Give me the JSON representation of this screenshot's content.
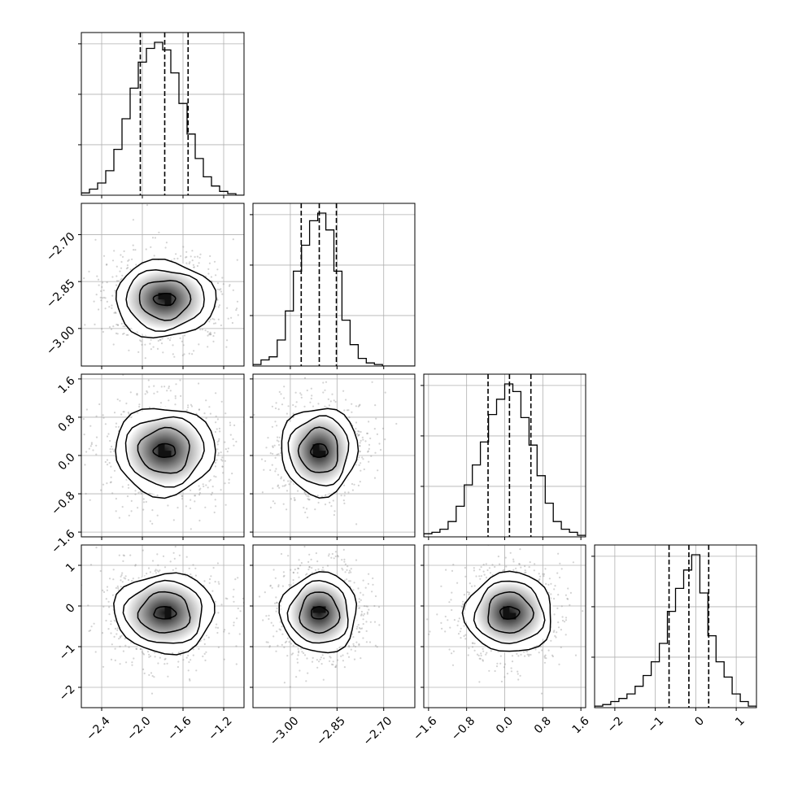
{
  "chart_data": {
    "type": "corner",
    "title": "",
    "parameters": 4,
    "bins": 20,
    "grid": true,
    "hist_color": "#000000",
    "scatter_color": "#808080",
    "contour_color": "#000000",
    "variables": [
      {
        "range": [
          -2.6,
          -1.0
        ],
        "ticks": [
          -2.4,
          -2.0,
          -1.6,
          -1.2
        ],
        "tick_labels": [
          "−2.4",
          "−2.0",
          "−1.6",
          "−1.2"
        ],
        "median": -1.78,
        "sigma": 0.24,
        "quantiles": [
          -2.02,
          -1.78,
          -1.55
        ]
      },
      {
        "range": [
          -3.12,
          -2.6
        ],
        "ticks": [
          -3.0,
          -2.85,
          -2.7
        ],
        "tick_labels": [
          "−3.00",
          "−2.85",
          "−2.70"
        ],
        "median": -2.907,
        "sigma": 0.06,
        "quantiles": [
          -2.965,
          -2.907,
          -2.852
        ]
      },
      {
        "range": [
          -1.7,
          1.7
        ],
        "ticks": [
          -1.6,
          -0.8,
          0.0,
          0.8,
          1.6
        ],
        "tick_labels": [
          "−1.6",
          "−0.8",
          "0.0",
          "0.8",
          "1.6"
        ],
        "median": 0.1,
        "sigma": 0.45,
        "quantiles": [
          -0.35,
          0.1,
          0.55
        ]
      },
      {
        "range": [
          -2.5,
          1.5
        ],
        "ticks": [
          -2,
          -1,
          0,
          1
        ],
        "tick_labels": [
          "−2",
          "−1",
          "0",
          "1"
        ],
        "median": -0.17,
        "sigma": 0.48,
        "quantiles": [
          -0.66,
          -0.17,
          0.32
        ]
      }
    ],
    "histograms": [
      [
        0.015,
        0.04,
        0.08,
        0.16,
        0.3,
        0.5,
        0.7,
        0.87,
        0.96,
        1.0,
        0.95,
        0.8,
        0.6,
        0.4,
        0.24,
        0.12,
        0.06,
        0.025,
        0.01,
        0.0
      ],
      [
        0.01,
        0.04,
        0.06,
        0.17,
        0.36,
        0.62,
        0.79,
        0.95,
        1.0,
        0.89,
        0.62,
        0.3,
        0.14,
        0.05,
        0.02,
        0.01,
        0.0,
        0.0,
        0.0,
        0.0
      ],
      [
        0.02,
        0.03,
        0.05,
        0.1,
        0.2,
        0.34,
        0.47,
        0.62,
        0.8,
        0.9,
        1.0,
        0.95,
        0.78,
        0.6,
        0.4,
        0.22,
        0.1,
        0.05,
        0.03,
        0.01
      ],
      [
        0.01,
        0.02,
        0.04,
        0.06,
        0.09,
        0.14,
        0.21,
        0.3,
        0.42,
        0.63,
        0.78,
        0.9,
        1.0,
        0.75,
        0.47,
        0.3,
        0.2,
        0.09,
        0.04,
        0.01
      ]
    ]
  }
}
